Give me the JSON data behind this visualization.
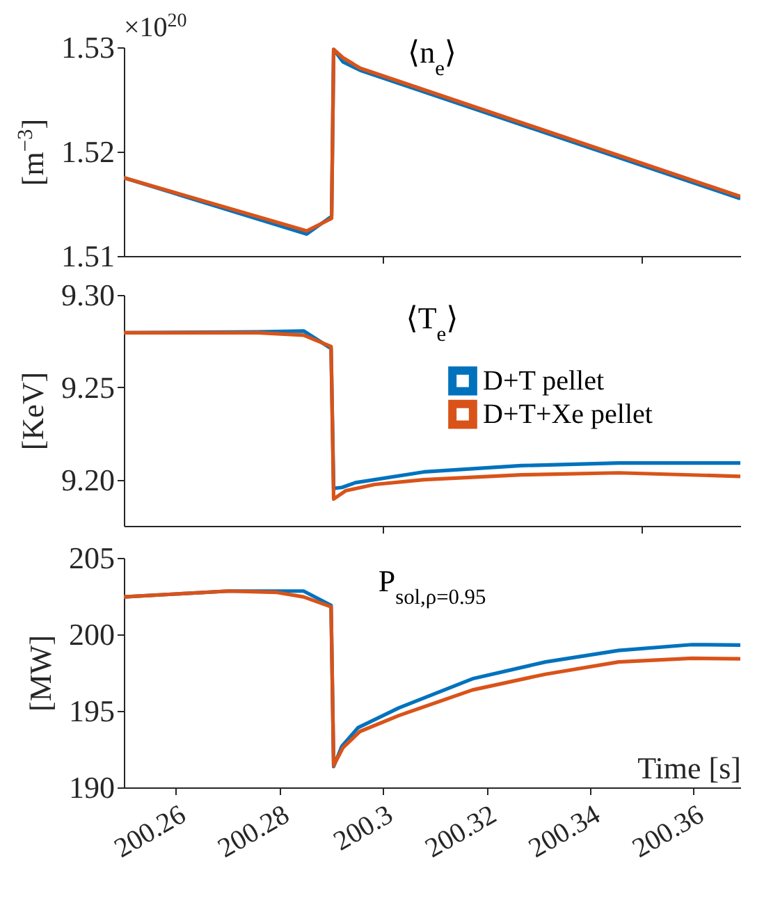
{
  "chart_data": [
    {
      "type": "line",
      "title": "⟨n$_{e}$⟩",
      "ylabel": "[m$^{−3}$]",
      "annotations": [
        "×10$^{20}$"
      ],
      "xlim": [
        200.25,
        200.369
      ],
      "xticks": [
        200.3,
        200.35
      ],
      "ylim": [
        1.51,
        1.53
      ],
      "yticks": [
        1.51,
        1.52,
        1.53
      ],
      "tick_labels": "y",
      "grid": false,
      "legend": false,
      "series": [
        {
          "color": "#0072bd",
          "x": [
            200.25,
            200.2853,
            200.2901,
            200.2905,
            200.2923,
            200.2956,
            200.369
          ],
          "values": [
            1.5175,
            1.5121,
            1.5138,
            1.5298,
            1.5286,
            1.5278,
            1.5155
          ]
        },
        {
          "color": "#d95319",
          "x": [
            200.25,
            200.2853,
            200.2901,
            200.2905,
            200.2923,
            200.2956,
            200.369
          ],
          "values": [
            1.5175,
            1.5124,
            1.5136,
            1.5298,
            1.529,
            1.528,
            1.5157
          ]
        }
      ]
    },
    {
      "type": "line",
      "title": "⟨T$_{e}$⟩",
      "ylabel": "[KeV]",
      "xlim": [
        200.25,
        200.369
      ],
      "xticks": [
        200.3,
        200.35
      ],
      "ylim": [
        9.175,
        9.3
      ],
      "yticks": [
        {
          "value": 9.2,
          "label": "9.20"
        },
        {
          "value": 9.25,
          "label": "9.25"
        },
        {
          "value": 9.3,
          "label": "9.30"
        }
      ],
      "tick_labels": "y",
      "grid": false,
      "legend": "right",
      "series": [
        {
          "name": "D+T pellet",
          "color": "#0072bd",
          "x": [
            200.25,
            200.2759,
            200.2847,
            200.29,
            200.2905,
            200.2921,
            200.2947,
            200.3079,
            200.3267,
            200.3455,
            200.369
          ],
          "values": [
            9.2795,
            9.28,
            9.2805,
            9.271,
            9.1953,
            9.1958,
            9.1984,
            9.2042,
            9.2076,
            9.209,
            9.209
          ]
        },
        {
          "name": "D+T+Xe pellet",
          "color": "#d95319",
          "x": [
            200.25,
            200.2759,
            200.2847,
            200.29,
            200.2905,
            200.2928,
            200.2984,
            200.3079,
            200.3267,
            200.3455,
            200.369
          ],
          "values": [
            9.2795,
            9.2795,
            9.2782,
            9.2721,
            9.1895,
            9.194,
            9.1974,
            9.2,
            9.2026,
            9.2037,
            9.2018
          ]
        }
      ]
    },
    {
      "type": "line",
      "title": "P$_{sol,ρ=0.95}$",
      "xlabel": "Time [s]",
      "ylabel": "[MW]",
      "xlim": [
        200.25,
        200.369
      ],
      "xticks": [
        200.26,
        200.28,
        200.3,
        200.32,
        200.34,
        200.36
      ],
      "ylim": [
        190,
        205
      ],
      "yticks": [
        190,
        195,
        200,
        205
      ],
      "grid": false,
      "legend": false,
      "series": [
        {
          "color": "#0072bd",
          "x": [
            200.25,
            200.2702,
            200.2847,
            200.29,
            200.2905,
            200.2921,
            200.2952,
            200.3031,
            200.3173,
            200.3314,
            200.3455,
            200.3596,
            200.369
          ],
          "values": [
            202.45,
            202.83,
            202.83,
            201.9,
            191.37,
            192.7,
            193.9,
            195.2,
            197.1,
            198.2,
            198.95,
            199.33,
            199.3
          ]
        },
        {
          "color": "#d95319",
          "x": [
            200.25,
            200.2702,
            200.2796,
            200.2847,
            200.29,
            200.2905,
            200.2923,
            200.2956,
            200.3031,
            200.3173,
            200.3314,
            200.3455,
            200.3596,
            200.369
          ],
          "values": [
            202.45,
            202.83,
            202.74,
            202.45,
            201.8,
            191.43,
            192.6,
            193.66,
            194.7,
            196.37,
            197.4,
            198.2,
            198.44,
            198.4
          ]
        }
      ]
    }
  ]
}
